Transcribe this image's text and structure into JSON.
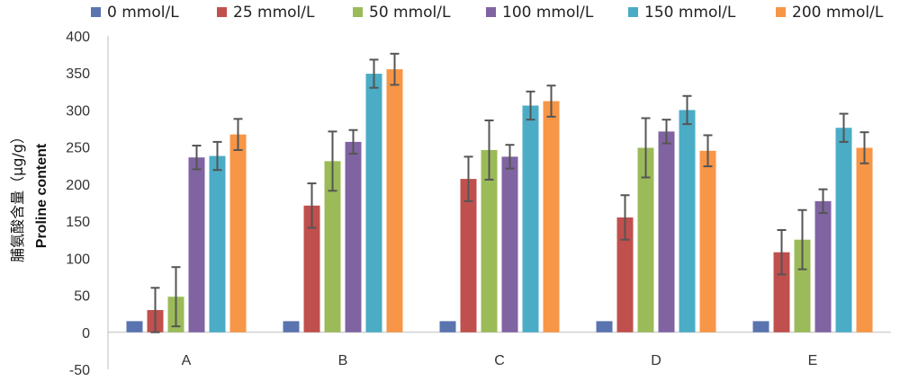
{
  "chart_data": {
    "type": "bar",
    "categories": [
      "A",
      "B",
      "C",
      "D",
      "E"
    ],
    "ylabel_cn": "脯氨酸含量（μg/g）",
    "ylabel_en": "Proline content",
    "ylim": [
      -50,
      400
    ],
    "yticks": [
      "400",
      "350",
      "300",
      "250",
      "200",
      "150",
      "100",
      "50",
      "0",
      "-50"
    ],
    "grid": false,
    "legend_position": "top",
    "error_bar_color": "#555555",
    "series": [
      {
        "name": "0 mmol/L",
        "color": "#5a74b0",
        "values": [
          15,
          15,
          15,
          15,
          15
        ],
        "errors": [
          0,
          0,
          0,
          0,
          0
        ]
      },
      {
        "name": "25 mmol/L",
        "color": "#c0504d",
        "values": [
          30,
          171,
          207,
          155,
          108
        ],
        "errors": [
          30,
          30,
          30,
          30,
          30
        ]
      },
      {
        "name": "50 mmol/L",
        "color": "#9bbb59",
        "values": [
          48,
          231,
          246,
          249,
          125
        ],
        "errors": [
          40,
          40,
          40,
          40,
          40
        ]
      },
      {
        "name": "100 mmol/L",
        "color": "#8064a2",
        "values": [
          236,
          257,
          237,
          271,
          177
        ],
        "errors": [
          16,
          16,
          16,
          16,
          16
        ]
      },
      {
        "name": "150 mmol/L",
        "color": "#4bacc6",
        "values": [
          238,
          349,
          306,
          300,
          276
        ],
        "errors": [
          19,
          19,
          19,
          19,
          19
        ]
      },
      {
        "name": "200 mmol/L",
        "color": "#f79646",
        "values": [
          267,
          355,
          312,
          245,
          249
        ],
        "errors": [
          21,
          21,
          21,
          21,
          21
        ]
      }
    ]
  }
}
